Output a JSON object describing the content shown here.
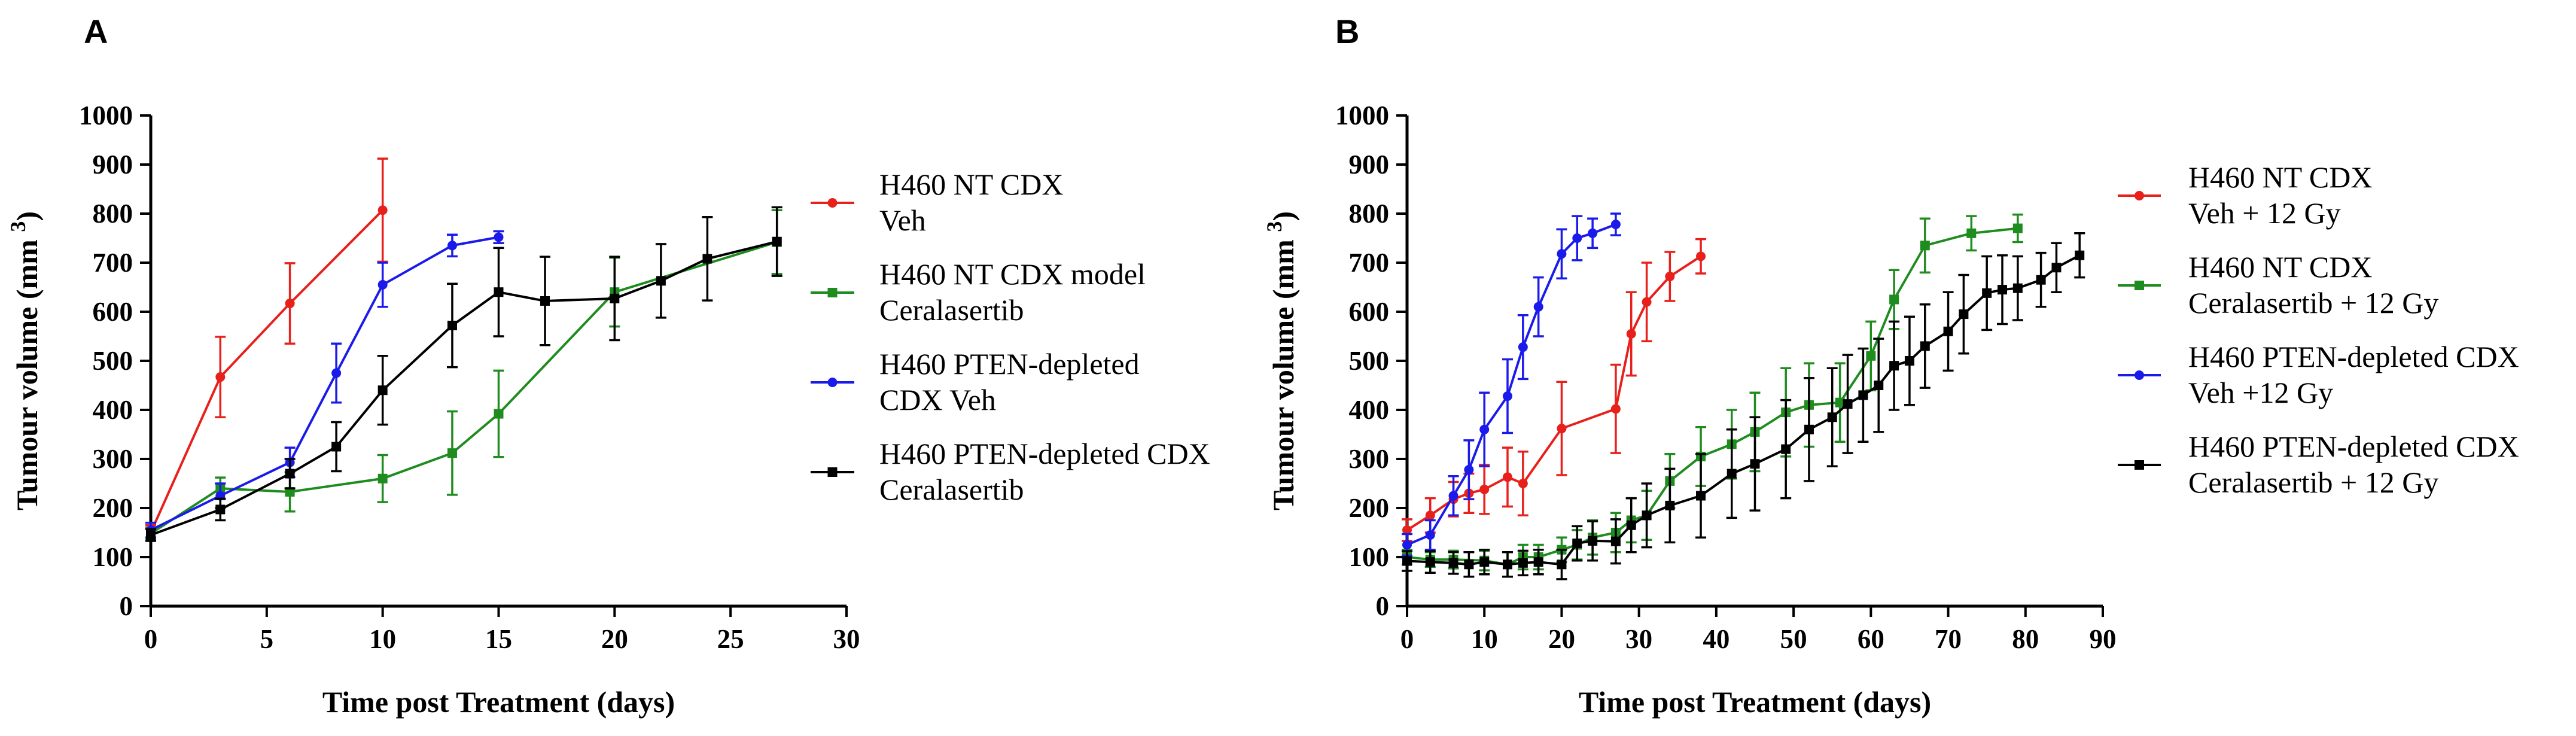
{
  "chart_data": [
    {
      "type": "line",
      "panel_label": "A",
      "xlabel": "Time post Treatment (days)",
      "ylabel": "Tumour volume (mm",
      "ylabel_sup": "3",
      "ylabel_close": ")",
      "xlim": [
        0,
        30
      ],
      "ylim": [
        0,
        1000
      ],
      "xticks": [
        "0",
        "5",
        "10",
        "15",
        "20",
        "25",
        "30"
      ],
      "yticks": [
        "0",
        "100",
        "200",
        "300",
        "400",
        "500",
        "600",
        "700",
        "800",
        "900",
        "1000"
      ],
      "series": [
        {
          "name": "H460 NT CDX Veh",
          "legend_lines": [
            "H460 NT CDX",
            "Veh"
          ],
          "color": "#e8201c",
          "marker": "circle",
          "x": [
            0,
            3,
            6,
            10
          ],
          "y": [
            150,
            467,
            617,
            807
          ],
          "err": [
            15,
            82,
            82,
            105
          ]
        },
        {
          "name": "H460 NT CDX model Ceralasertib",
          "legend_lines": [
            "H460 NT CDX model",
            "Ceralasertib"
          ],
          "color": "#1e8c1e",
          "marker": "square",
          "x": [
            0,
            3,
            6,
            10,
            13,
            15,
            20,
            27
          ],
          "y": [
            148,
            240,
            233,
            260,
            312,
            392,
            640,
            742
          ],
          "err": [
            12,
            22,
            40,
            48,
            85,
            88,
            70,
            65
          ]
        },
        {
          "name": "H460 PTEN-depleted CDX Veh",
          "legend_lines": [
            "H460 PTEN-depleted",
            "CDX Veh"
          ],
          "color": "#1a1aeb",
          "marker": "circle",
          "x": [
            0,
            3,
            6,
            8,
            10,
            13,
            15
          ],
          "y": [
            155,
            225,
            293,
            475,
            655,
            735,
            752
          ],
          "err": [
            15,
            25,
            30,
            60,
            45,
            22,
            12
          ]
        },
        {
          "name": "H460 PTEN-depleted CDX Ceralasertib",
          "legend_lines": [
            "H460 PTEN-depleted CDX",
            "Ceralasertib"
          ],
          "color": "#000000",
          "marker": "square",
          "x": [
            0,
            3,
            6,
            8,
            10,
            13,
            15,
            17,
            20,
            22,
            24,
            27
          ],
          "y": [
            145,
            197,
            270,
            325,
            440,
            572,
            640,
            622,
            627,
            663,
            708,
            743
          ],
          "err": [
            12,
            22,
            30,
            50,
            70,
            85,
            90,
            90,
            85,
            75,
            85,
            70
          ]
        }
      ]
    },
    {
      "type": "line",
      "panel_label": "B",
      "xlabel": "Time post Treatment (days)",
      "ylabel": "Tumour volume (mm",
      "ylabel_sup": "3",
      "ylabel_close": ")",
      "xlim": [
        0,
        90
      ],
      "ylim": [
        0,
        1000
      ],
      "xticks": [
        "0",
        "10",
        "20",
        "30",
        "40",
        "50",
        "60",
        "70",
        "80",
        "90"
      ],
      "yticks": [
        "0",
        "100",
        "200",
        "300",
        "400",
        "500",
        "600",
        "700",
        "800",
        "900",
        "1000"
      ],
      "series": [
        {
          "name": "H460 NT CDX Veh + 12 Gy",
          "legend_lines": [
            "H460 NT CDX",
            "Veh + 12 Gy"
          ],
          "color": "#e8201c",
          "marker": "circle",
          "x": [
            0,
            3,
            6,
            8,
            10,
            13,
            15,
            20,
            27,
            29,
            31,
            34,
            38
          ],
          "y": [
            155,
            185,
            218,
            230,
            238,
            263,
            250,
            362,
            402,
            555,
            620,
            672,
            713
          ],
          "err": [
            22,
            35,
            35,
            40,
            50,
            60,
            65,
            95,
            90,
            85,
            80,
            50,
            35
          ]
        },
        {
          "name": "H460 NT CDX Ceralasertib + 12 Gy",
          "legend_lines": [
            "H460 NT CDX",
            "Ceralasertib + 12 Gy"
          ],
          "color": "#1e8c1e",
          "marker": "square",
          "x": [
            0,
            3,
            6,
            10,
            13,
            15,
            17,
            20,
            22,
            24,
            27,
            29,
            31,
            34,
            38,
            42,
            45,
            49,
            52,
            56,
            60,
            63,
            67,
            73,
            79
          ],
          "y": [
            100,
            95,
            95,
            93,
            85,
            100,
            100,
            115,
            125,
            140,
            150,
            175,
            185,
            255,
            305,
            330,
            355,
            395,
            410,
            415,
            510,
            625,
            735,
            760,
            770
          ],
          "err": [
            15,
            15,
            18,
            20,
            25,
            25,
            25,
            25,
            30,
            35,
            40,
            45,
            50,
            55,
            60,
            70,
            80,
            90,
            85,
            80,
            70,
            60,
            55,
            35,
            28
          ]
        },
        {
          "name": "H460 PTEN-depleted CDX Veh +12 Gy",
          "legend_lines": [
            "H460 PTEN-depleted CDX",
            "Veh +12 Gy"
          ],
          "color": "#1a1aeb",
          "marker": "circle",
          "x": [
            0,
            3,
            6,
            8,
            10,
            13,
            15,
            17,
            20,
            22,
            24,
            27
          ],
          "y": [
            125,
            145,
            225,
            278,
            360,
            428,
            528,
            610,
            718,
            750,
            760,
            778
          ],
          "err": [
            22,
            30,
            40,
            60,
            75,
            75,
            65,
            60,
            50,
            45,
            30,
            22
          ]
        },
        {
          "name": "H460 PTEN-depleted CDX Ceralasertib + 12 Gy",
          "legend_lines": [
            "H460 PTEN-depleted CDX",
            "Ceralasertib + 12 Gy"
          ],
          "color": "#000000",
          "marker": "square",
          "x": [
            0,
            3,
            6,
            8,
            10,
            13,
            15,
            17,
            20,
            22,
            24,
            27,
            29,
            31,
            34,
            38,
            42,
            45,
            49,
            52,
            55,
            57,
            59,
            61,
            63,
            65,
            67,
            70,
            72,
            75,
            77,
            79,
            82,
            84,
            87
          ],
          "y": [
            92,
            90,
            88,
            85,
            90,
            85,
            88,
            90,
            85,
            128,
            133,
            132,
            165,
            185,
            205,
            225,
            270,
            290,
            320,
            360,
            385,
            412,
            430,
            450,
            490,
            500,
            530,
            560,
            595,
            638,
            645,
            648,
            665,
            690,
            715
          ],
          "err": [
            20,
            22,
            22,
            25,
            25,
            25,
            25,
            25,
            30,
            35,
            40,
            45,
            55,
            65,
            75,
            85,
            90,
            95,
            100,
            105,
            100,
            100,
            95,
            95,
            90,
            90,
            85,
            80,
            80,
            75,
            70,
            65,
            55,
            50,
            45
          ]
        }
      ]
    }
  ]
}
